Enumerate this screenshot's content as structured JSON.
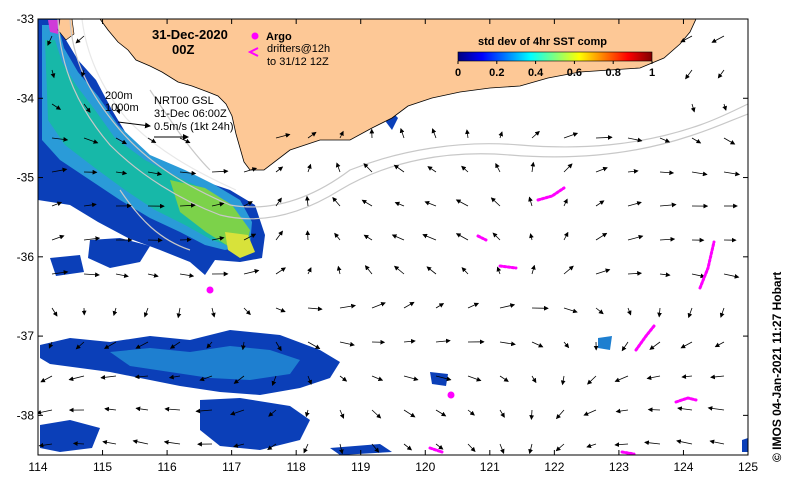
{
  "map": {
    "date_title": "31-Dec-2020",
    "hour_title": "00Z",
    "argo_label": "Argo",
    "drifters_line1": "drifters@12h",
    "drifters_line2": "to 31/12 12Z",
    "isobath_200": "200m",
    "isobath_1000": "1000m",
    "current_source": "NRT00 GSL",
    "current_time": "31-Dec 06:00Z",
    "vector_scale": "0.5m/s (1kt 24h)",
    "credit": "© IMOS 04-Jan-2021 11:27 Hobart",
    "x_ticks": [
      "114",
      "115",
      "116",
      "117",
      "118",
      "119",
      "120",
      "121",
      "122",
      "123",
      "124",
      "125"
    ],
    "y_ticks": [
      "-33",
      "-34",
      "-35",
      "-36",
      "-37",
      "-38"
    ],
    "lon_range": [
      114,
      125
    ],
    "lat_range": [
      -38.5,
      -33
    ],
    "colors": {
      "land": "#fdc896",
      "argo": "#ff00ff",
      "drifter": "#ff00ff",
      "isobath": "#c8c8c8"
    }
  },
  "colorbar": {
    "title": "std dev of 4hr SST comp",
    "tick_labels": [
      "0",
      "0.2",
      "0.4",
      "0.6",
      "0.8",
      "1"
    ],
    "range": [
      0,
      1
    ],
    "stops": [
      "#00007f",
      "#0000ff",
      "#007fff",
      "#00ffff",
      "#7fff7f",
      "#ffff00",
      "#ff7f00",
      "#ff0000",
      "#7f0000"
    ]
  }
}
